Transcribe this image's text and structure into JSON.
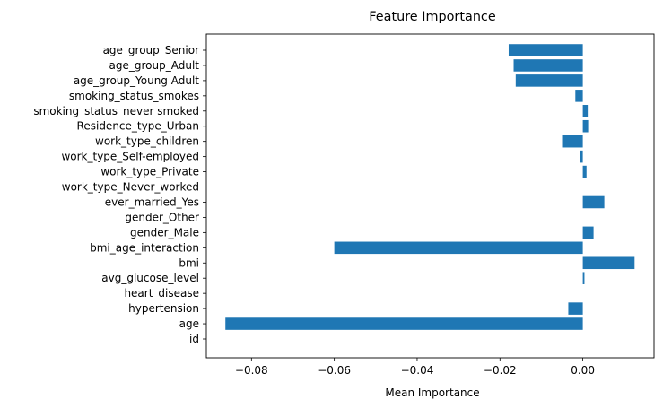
{
  "chart_data": {
    "type": "bar",
    "orientation": "horizontal",
    "title": "Feature Importance",
    "xlabel": "Mean Importance",
    "ylabel": "",
    "xlim": [
      -0.0909,
      0.0172
    ],
    "xticks": [
      -0.08,
      -0.06,
      -0.04,
      -0.02,
      0.0
    ],
    "xtick_labels": [
      "−0.08",
      "−0.06",
      "−0.04",
      "−0.02",
      "0.00"
    ],
    "grid": false,
    "bar_color": "#1f77b4",
    "categories": [
      "id",
      "age",
      "hypertension",
      "heart_disease",
      "avg_glucose_level",
      "bmi",
      "bmi_age_interaction",
      "gender_Male",
      "gender_Other",
      "ever_married_Yes",
      "work_type_Never_worked",
      "work_type_Private",
      "work_type_Self-employed",
      "work_type_children",
      "Residence_type_Urban",
      "smoking_status_never smoked",
      "smoking_status_smokes",
      "age_group_Young Adult",
      "age_group_Adult",
      "age_group_Senior"
    ],
    "values": [
      0.0,
      -0.0863,
      -0.0035,
      0.0,
      0.0004,
      0.0125,
      -0.06,
      0.0026,
      0.0,
      0.0052,
      0.0,
      0.0009,
      -0.0007,
      -0.005,
      0.0013,
      0.0012,
      -0.0018,
      -0.0162,
      -0.0167,
      -0.0179
    ]
  }
}
